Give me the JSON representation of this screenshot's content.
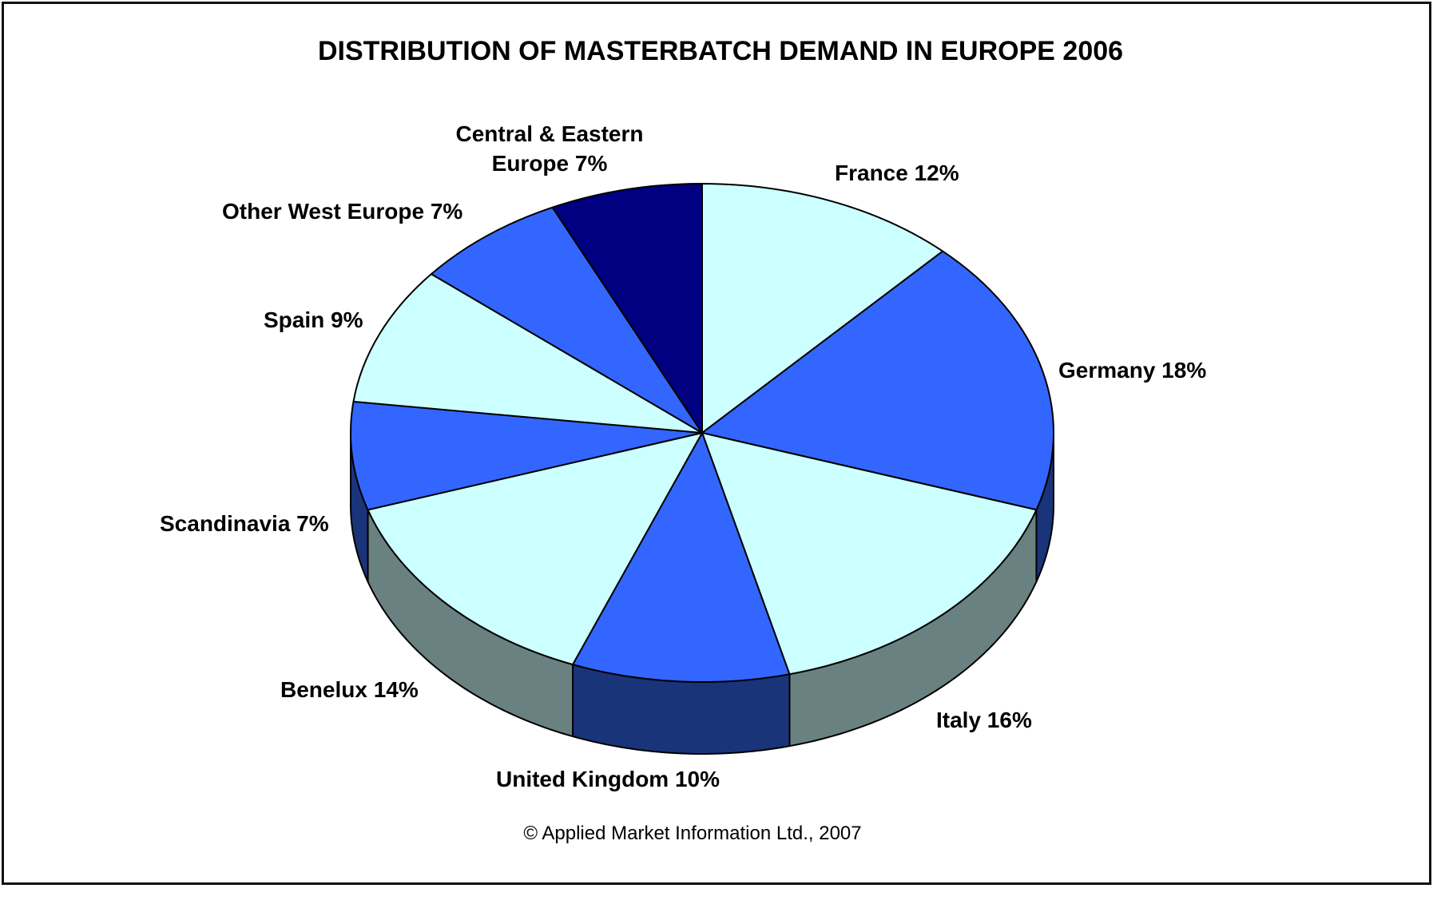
{
  "chart_data": {
    "type": "pie",
    "title": "DISTRIBUTION OF MASTERBATCH DEMAND IN EUROPE 2006",
    "style": "3d-pie",
    "colors": {
      "light": "#ccffff",
      "blue": "#3366ff",
      "navy": "#000080",
      "side_gray": "#6a8181",
      "side_navy": "#1a347a"
    },
    "slices": [
      {
        "label": "France 12%",
        "name": "France",
        "value": 12,
        "color": "#ccffff"
      },
      {
        "label": "Germany 18%",
        "name": "Germany",
        "value": 18,
        "color": "#3366ff"
      },
      {
        "label": "Italy 16%",
        "name": "Italy",
        "value": 16,
        "color": "#ccffff"
      },
      {
        "label": "United Kingdom 10%",
        "name": "United Kingdom",
        "value": 10,
        "color": "#3366ff"
      },
      {
        "label": "Benelux 14%",
        "name": "Benelux",
        "value": 14,
        "color": "#ccffff"
      },
      {
        "label": "Scandinavia 7%",
        "name": "Scandinavia",
        "value": 7,
        "color": "#3366ff"
      },
      {
        "label": "Spain 9%",
        "name": "Spain",
        "value": 9,
        "color": "#ccffff"
      },
      {
        "label": "Other West Europe 7%",
        "name": "Other West Europe",
        "value": 7,
        "color": "#3366ff"
      },
      {
        "label_lines": [
          "Central & Eastern",
          "Europe 7%"
        ],
        "name": "Central & Eastern Europe",
        "value": 7,
        "color": "#000080"
      }
    ]
  },
  "footer": {
    "copyright": "© Applied Market Information Ltd., 2007"
  }
}
